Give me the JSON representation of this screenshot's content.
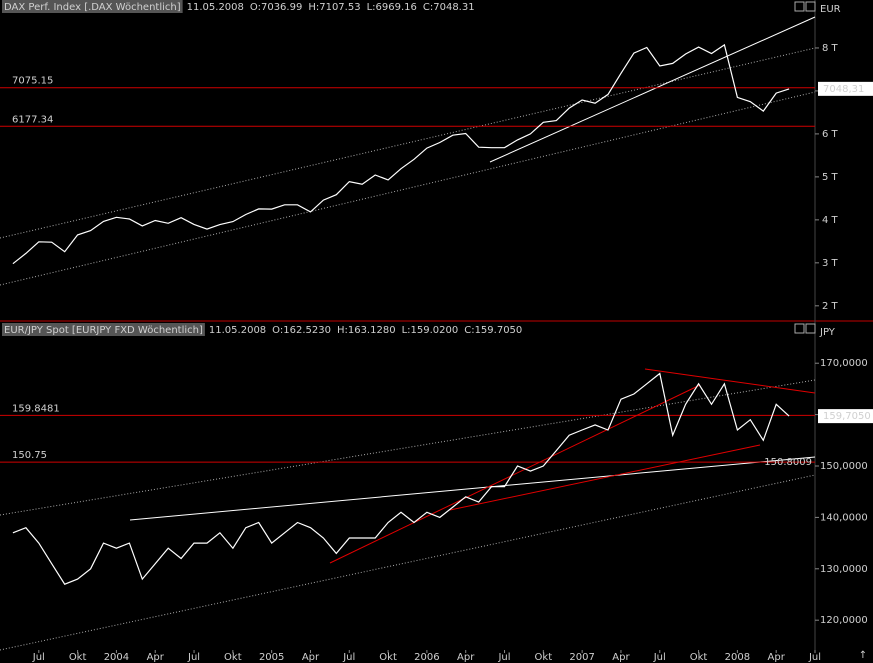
{
  "x_axis": {
    "xlim": [
      "2003-04",
      "2008-07"
    ],
    "xticks": [
      {
        "value": "2003-07",
        "label": "Jul"
      },
      {
        "value": "2003-10",
        "label": "Okt"
      },
      {
        "value": "2004-01",
        "label": "2004"
      },
      {
        "value": "2004-04",
        "label": "Apr"
      },
      {
        "value": "2004-07",
        "label": "Jul"
      },
      {
        "value": "2004-10",
        "label": "Okt"
      },
      {
        "value": "2005-01",
        "label": "2005"
      },
      {
        "value": "2005-04",
        "label": "Apr"
      },
      {
        "value": "2005-07",
        "label": "Jul"
      },
      {
        "value": "2005-10",
        "label": "Okt"
      },
      {
        "value": "2006-01",
        "label": "2006"
      },
      {
        "value": "2006-04",
        "label": "Apr"
      },
      {
        "value": "2006-07",
        "label": "Jul"
      },
      {
        "value": "2006-10",
        "label": "Okt"
      },
      {
        "value": "2007-01",
        "label": "2007"
      },
      {
        "value": "2007-04",
        "label": "Apr"
      },
      {
        "value": "2007-07",
        "label": "Jul"
      },
      {
        "value": "2007-10",
        "label": "Okt"
      },
      {
        "value": "2008-01",
        "label": "2008"
      },
      {
        "value": "2008-04",
        "label": "Apr"
      },
      {
        "value": "2008-07",
        "label": "Jul"
      }
    ]
  },
  "chart_data": [
    {
      "type": "line",
      "date": "11.05.2008",
      "open": "O:7036.99",
      "high": "H:7107.53",
      "low": "L:6969.16",
      "close": "C:7048.31",
      "y_unit": "EUR",
      "ylim": [
        1670,
        8790
      ],
      "yticks": [
        {
          "value": 2000,
          "label": "2 T"
        },
        {
          "value": 3000,
          "label": "3 T"
        },
        {
          "value": 4000,
          "label": "4 T"
        },
        {
          "value": 5000,
          "label": "5 T"
        },
        {
          "value": 6000,
          "label": "6 T"
        },
        {
          "value": 7000,
          "label": "7 T"
        },
        {
          "value": 8000,
          "label": "8 T"
        }
      ],
      "hlines": [
        7075.15,
        6177.34
      ],
      "last_price": {
        "value": 7048.31,
        "label": "7048,31"
      },
      "x": [
        "2003-05",
        "2003-06",
        "2003-07",
        "2003-08",
        "2003-09",
        "2003-10",
        "2003-11",
        "2003-12",
        "2004-01",
        "2004-02",
        "2004-03",
        "2004-04",
        "2004-05",
        "2004-06",
        "2004-07",
        "2004-08",
        "2004-09",
        "2004-10",
        "2004-11",
        "2004-12",
        "2005-01",
        "2005-02",
        "2005-03",
        "2005-04",
        "2005-05",
        "2005-06",
        "2005-07",
        "2005-08",
        "2005-09",
        "2005-10",
        "2005-11",
        "2005-12",
        "2006-01",
        "2006-02",
        "2006-03",
        "2006-04",
        "2006-05",
        "2006-06",
        "2006-07",
        "2006-08",
        "2006-09",
        "2006-10",
        "2006-11",
        "2006-12",
        "2007-01",
        "2007-02",
        "2007-03",
        "2007-04",
        "2007-05",
        "2007-06",
        "2007-07",
        "2007-08",
        "2007-09",
        "2007-10",
        "2007-11",
        "2007-12",
        "2008-01",
        "2008-02",
        "2008-03",
        "2008-04",
        "2008-05"
      ],
      "series": [
        {
          "name": "DAX Perf. Index [.DAX  Wöchentlich]",
          "color": "#ffffff",
          "values": [
            2980,
            3220,
            3490,
            3480,
            3260,
            3650,
            3750,
            3965,
            4060,
            4020,
            3860,
            3985,
            3920,
            4050,
            3895,
            3785,
            3890,
            3960,
            4125,
            4255,
            4250,
            4350,
            4350,
            4185,
            4460,
            4585,
            4890,
            4830,
            5045,
            4930,
            5190,
            5410,
            5670,
            5800,
            5970,
            6010,
            5690,
            5680,
            5680,
            5860,
            6000,
            6270,
            6310,
            6600,
            6790,
            6715,
            6920,
            7410,
            7880,
            8010,
            7580,
            7640,
            7860,
            8020,
            7870,
            8070,
            6850,
            6750,
            6530,
            6950,
            7048.31
          ]
        }
      ]
    },
    {
      "type": "line",
      "date": "11.05.2008",
      "open": "O:162.5230",
      "high": "H:163.1280",
      "low": "L:159.0200",
      "close": "C:159.7050",
      "y_unit": "JPY",
      "ylim": [
        114.2,
        175.1
      ],
      "yticks": [
        {
          "value": 120,
          "label": "120,0000"
        },
        {
          "value": 130,
          "label": "130,0000"
        },
        {
          "value": 140,
          "label": "140,0000"
        },
        {
          "value": 150,
          "label": "150,0000"
        },
        {
          "value": 160,
          "label": "160,0000"
        },
        {
          "value": 170,
          "label": "170,0000"
        }
      ],
      "hlines": [
        159.8481,
        150.75
      ],
      "last_price": {
        "value": 159.705,
        "label": "159,7050"
      },
      "annotation": {
        "value": 150.8009,
        "label": "150.8009"
      },
      "x": [
        "2003-05",
        "2003-06",
        "2003-07",
        "2003-08",
        "2003-09",
        "2003-10",
        "2003-11",
        "2003-12",
        "2004-01",
        "2004-02",
        "2004-03",
        "2004-04",
        "2004-05",
        "2004-06",
        "2004-07",
        "2004-08",
        "2004-09",
        "2004-10",
        "2004-11",
        "2004-12",
        "2005-01",
        "2005-02",
        "2005-03",
        "2005-04",
        "2005-05",
        "2005-06",
        "2005-07",
        "2005-08",
        "2005-09",
        "2005-10",
        "2005-11",
        "2005-12",
        "2006-01",
        "2006-02",
        "2006-03",
        "2006-04",
        "2006-05",
        "2006-06",
        "2006-07",
        "2006-08",
        "2006-09",
        "2006-10",
        "2006-11",
        "2006-12",
        "2007-01",
        "2007-02",
        "2007-03",
        "2007-04",
        "2007-05",
        "2007-06",
        "2007-07",
        "2007-08",
        "2007-09",
        "2007-10",
        "2007-11",
        "2007-12",
        "2008-01",
        "2008-02",
        "2008-03",
        "2008-04",
        "2008-05"
      ],
      "series": [
        {
          "name": "EUR/JPY Spot [EURJPY FXD  Wöchentlich]",
          "color": "#ffffff",
          "values": [
            137,
            138,
            135,
            131,
            127,
            128,
            130,
            135,
            134,
            135,
            128,
            131,
            134,
            132,
            135,
            135,
            137,
            134,
            138,
            139,
            135,
            137,
            139,
            138,
            136,
            133,
            136,
            136,
            136,
            139,
            141,
            139,
            141,
            140,
            142,
            144,
            143,
            146,
            146,
            150,
            149,
            150,
            153,
            156,
            157,
            158,
            157,
            163,
            164,
            166,
            168,
            156,
            162,
            166,
            162,
            166,
            157,
            159,
            155,
            162,
            159.705
          ]
        }
      ]
    }
  ]
}
